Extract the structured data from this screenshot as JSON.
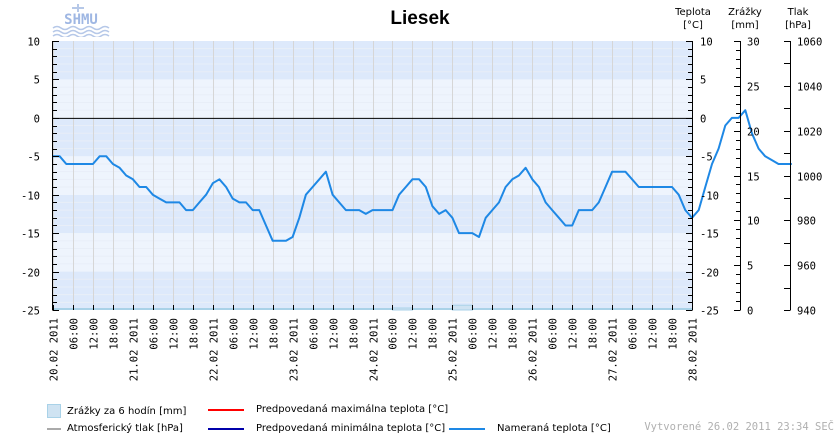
{
  "header": {
    "logo_text": "SHMU",
    "title": "Liesek"
  },
  "axes_headers": {
    "temp": {
      "line1": "Teplota",
      "line2": "[°C]"
    },
    "precip": {
      "line1": "Zrážky",
      "line2": "[mm]"
    },
    "pressure": {
      "line1": "Tlak",
      "line2": "[hPa]"
    }
  },
  "legend": {
    "precip": "Zrážky za 6 hodín [mm]",
    "pressure": "Atmosferický tlak [hPa]",
    "max_temp": "Predpovedaná maximálna teplota [°C]",
    "min_temp": "Predpovedaná minimálna teplota [°C]",
    "measured_temp": "Nameraná teplota [°C]"
  },
  "footer": {
    "created": "Vytvorené 26.02 2011 23:34 SEČ"
  },
  "colors": {
    "measured_temp": "#1e88e5",
    "max_temp": "#ff0000",
    "min_temp": "#0000aa",
    "pressure": "#aaaaaa",
    "precip_fill": "#cfe3f2",
    "precip_edge": "#a9d2e8",
    "band_dark": "#dde9fb",
    "band_light": "#eef4fd",
    "grid": "#d6d6d6"
  },
  "chart_data": {
    "type": "line",
    "title": "Liesek",
    "xlabel": "",
    "ylabel": "Teplota [°C]",
    "ylim": [
      -25,
      10
    ],
    "y_ticks": [
      10,
      5,
      0,
      -5,
      -10,
      -15,
      -20,
      -25
    ],
    "right_axes": [
      {
        "label": "Teplota [°C]",
        "ticks": [
          10,
          5,
          0,
          -5,
          -10,
          -15,
          -20,
          -25
        ]
      },
      {
        "label": "Zrážky [mm]",
        "range": [
          0,
          30
        ],
        "ticks": [
          30,
          25,
          20,
          15,
          10,
          5,
          0
        ]
      },
      {
        "label": "Tlak [hPa]",
        "range": [
          940,
          1060
        ],
        "ticks": [
          1060,
          1040,
          1020,
          1000,
          980,
          960,
          940
        ]
      }
    ],
    "x_tick_labels": [
      "20.02 2011",
      "06:00",
      "12:00",
      "18:00",
      "21.02 2011",
      "06:00",
      "12:00",
      "18:00",
      "22.02 2011",
      "06:00",
      "12:00",
      "18:00",
      "23.02 2011",
      "06:00",
      "12:00",
      "18:00",
      "24.02 2011",
      "06:00",
      "12:00",
      "18:00",
      "25.02 2011",
      "06:00",
      "12:00",
      "18:00",
      "26.02 2011",
      "06:00",
      "12:00",
      "18:00",
      "27.02 2011",
      "06:00",
      "12:00",
      "18:00",
      "28.02 2011"
    ],
    "grid": true,
    "legend_position": "bottom",
    "series": [
      {
        "name": "Nameraná teplota [°C]",
        "x_hours": [
          0,
          2,
          4,
          8,
          12,
          14,
          16,
          18,
          20,
          22,
          24,
          26,
          28,
          30,
          32,
          34,
          36,
          38,
          40,
          42,
          44,
          46,
          48,
          50,
          52,
          54,
          56,
          58,
          60,
          62,
          64,
          66,
          68,
          70,
          72,
          74,
          76,
          78,
          80,
          82,
          84,
          86,
          88,
          90,
          92,
          94,
          96,
          98,
          100,
          102,
          104,
          106,
          108,
          110,
          112,
          114,
          116,
          118,
          120,
          122,
          124,
          126,
          128,
          130,
          132,
          134,
          136,
          138,
          140,
          142,
          144,
          146,
          148,
          150,
          152,
          154,
          156,
          158,
          160,
          162,
          164,
          166,
          168,
          170,
          172,
          174,
          176,
          178,
          180,
          182,
          184,
          186,
          188,
          190,
          192,
          194,
          196,
          198,
          200,
          202,
          204,
          206,
          208,
          210,
          212,
          214,
          216,
          218,
          220,
          222
        ],
        "values": [
          -5,
          -5,
          -6,
          -6,
          -6,
          -5,
          -5,
          -6,
          -6.5,
          -7.5,
          -8,
          -9,
          -9,
          -10,
          -10.5,
          -11,
          -11,
          -11,
          -12,
          -12,
          -11,
          -10,
          -8.5,
          -8,
          -9,
          -10.5,
          -11,
          -11,
          -12,
          -12,
          -14,
          -16,
          -16,
          -16,
          -15.5,
          -13,
          -10,
          -9,
          -8,
          -7,
          -10,
          -11,
          -12,
          -12,
          -12,
          -12.5,
          -12,
          -12,
          -12,
          -12,
          -10,
          -9,
          -8,
          -8,
          -9,
          -11.5,
          -12.5,
          -12,
          -13,
          -15,
          -15,
          -15,
          -15.5,
          -13,
          -12,
          -11,
          -9,
          -8,
          -7.5,
          -6.5,
          -8,
          -9,
          -11,
          -12,
          -13,
          -14,
          -14,
          -12,
          -12,
          -12,
          -11,
          -9,
          -7,
          -7,
          -7,
          -8,
          -9,
          -9,
          -9,
          -9,
          -9,
          -9,
          -10,
          -12,
          -13,
          -12,
          -9,
          -6,
          -4,
          -1,
          0,
          0,
          1,
          -2,
          -4,
          -5,
          -5.5,
          -6,
          -6,
          -6
        ],
        "color": "#1e88e5"
      },
      {
        "name": "Zrážky za 6 hodín [mm]",
        "type": "bar",
        "x_hours": [
          102,
          120
        ],
        "values": [
          0.2,
          0.6
        ]
      },
      {
        "name": "Atmosferický tlak [hPa]",
        "values": []
      },
      {
        "name": "Predpovedaná maximálna teplota [°C]",
        "values": []
      },
      {
        "name": "Predpovedaná minimálna teplota [°C]",
        "values": []
      }
    ]
  }
}
